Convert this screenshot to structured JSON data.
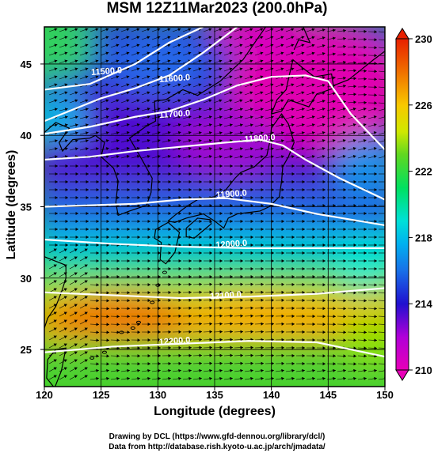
{
  "title": "MSM 12Z11Mar2023 (200.0hPa)",
  "xlabel": "Longitude (degrees)",
  "ylabel": "Latitude  (degrees)",
  "credit_lines": [
    "Drawing by DCL (https://www.gfd-dennou.org/library/dcl/)",
    "Data from http://database.rish.kyoto-u.ac.jp/arch/jmadata/"
  ],
  "map": {
    "lon_range": [
      120,
      150
    ],
    "lat_range": [
      22.4,
      47.6
    ],
    "x_ticks": [
      "120",
      "125",
      "130",
      "135",
      "140",
      "145",
      "150"
    ],
    "x_tick_values": [
      120,
      125,
      130,
      135,
      140,
      145,
      150
    ],
    "y_ticks": [
      "25",
      "30",
      "35",
      "40",
      "45"
    ],
    "y_tick_values": [
      25,
      30,
      35,
      40,
      45
    ],
    "grid": true,
    "contours": [
      {
        "label": "11500.0",
        "label_lon": 125.5,
        "label_lat": 44.3
      },
      {
        "label": "11600.0",
        "label_lon": 131.5,
        "label_lat": 43.8
      },
      {
        "label": "11700.0",
        "label_lon": 131.5,
        "label_lat": 41.3
      },
      {
        "label": "11800.0",
        "label_lon": 139.0,
        "label_lat": 39.6
      },
      {
        "label": "11900.0",
        "label_lon": 136.5,
        "label_lat": 35.7
      },
      {
        "label": "12000.0",
        "label_lon": 136.5,
        "label_lat": 32.2
      },
      {
        "label": "12100.0",
        "label_lon": 136.0,
        "label_lat": 28.6
      },
      {
        "label": "12200.0",
        "label_lon": 131.5,
        "label_lat": 25.4
      }
    ]
  },
  "colorbar": {
    "min": 210,
    "max": 230,
    "tick_labels": [
      "210",
      "214",
      "218",
      "222",
      "226",
      "230"
    ],
    "tick_values": [
      210,
      214,
      218,
      222,
      226,
      230
    ],
    "colors": [
      "#e800b8",
      "#c800e0",
      "#3010d8",
      "#1e5ae8",
      "#00a8f0",
      "#00e0e0",
      "#00e070",
      "#30d020",
      "#b0e000",
      "#f0e800",
      "#f8a800",
      "#f06000",
      "#e82000"
    ]
  }
}
